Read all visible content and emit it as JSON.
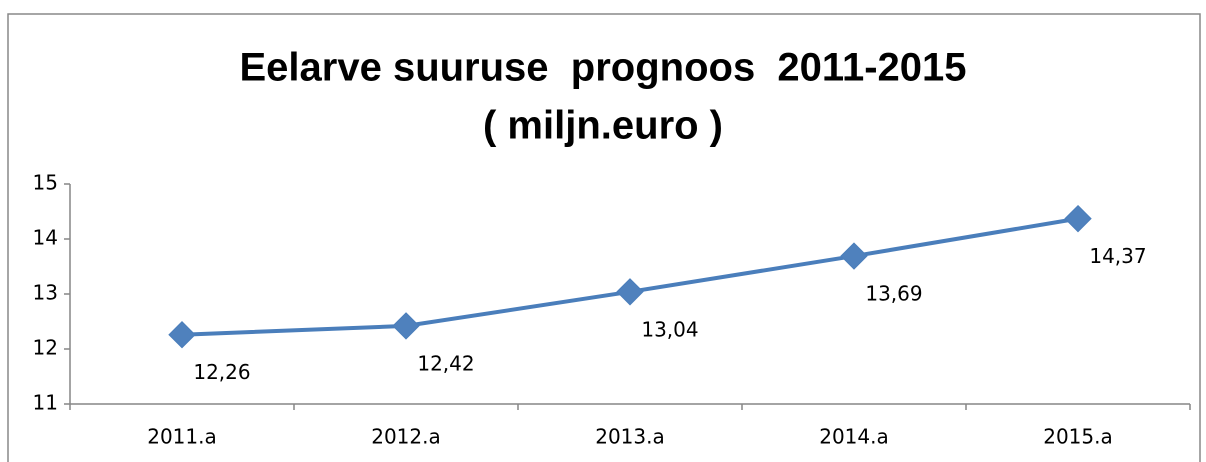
{
  "chart_data": {
    "type": "line",
    "title": "Eelarve suuruse  prognoos  2011-2015",
    "subtitle": "( miljn.euro )",
    "categories": [
      "2011.a",
      "2012.a",
      "2013.a",
      "2014.a",
      "2015.a"
    ],
    "series": [
      {
        "name": null,
        "color": "#4a7ebb",
        "values": [
          12.26,
          12.42,
          13.04,
          13.69,
          14.37
        ],
        "value_labels": [
          "12,26",
          "12,42",
          "13,04",
          "13,69",
          "14,37"
        ]
      }
    ],
    "ylim": [
      11,
      15
    ],
    "yticks": [
      11,
      12,
      13,
      14,
      15
    ],
    "grid": false
  }
}
